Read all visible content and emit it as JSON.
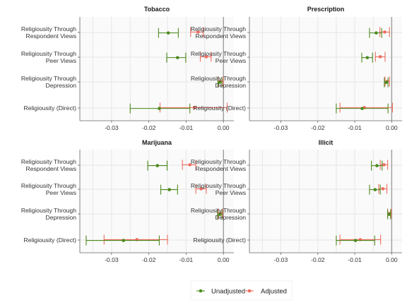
{
  "chart_data": {
    "type": "forest",
    "x_range": [
      -0.0385,
      0.0028
    ],
    "x_ticks": [
      -0.03,
      -0.02,
      -0.01,
      0.0
    ],
    "x_tick_labels": [
      "-0.03",
      "-0.02",
      "-0.01",
      "0.00"
    ],
    "zero_line": 0.0,
    "categories": [
      [
        "Religiousity Through",
        "Respondent Views"
      ],
      [
        "Religiousity Through",
        "Peer Views"
      ],
      [
        "Religiousity Through",
        "Depression"
      ],
      [
        "Religiousity (Direct)"
      ]
    ],
    "series_styles": [
      {
        "name": "Unadjusted",
        "color": "#4d8a1f",
        "offset": 0.15
      },
      {
        "name": "Adjusted",
        "color": "#ef6d5f",
        "offset": -0.15
      }
    ],
    "legend": {
      "position": "bottom",
      "items": [
        {
          "label": "Unadjusted",
          "color": "#4d8a1f"
        },
        {
          "label": "Adjusted",
          "color": "#ef6d5f"
        }
      ]
    },
    "panels": [
      {
        "title": "Tobacco",
        "series": [
          {
            "name": "Unadjusted",
            "points": [
              {
                "est": -0.0148,
                "lo": -0.0174,
                "hi": -0.0121
              },
              {
                "est": -0.0123,
                "lo": -0.0152,
                "hi": -0.0101
              },
              {
                "est": -0.001,
                "lo": -0.0015,
                "hi": -0.0004
              },
              {
                "est": -0.0172,
                "lo": -0.025,
                "hi": -0.009
              }
            ]
          },
          {
            "name": "Adjusted",
            "points": [
              {
                "est": -0.0068,
                "lo": -0.0088,
                "hi": -0.0054
              },
              {
                "est": -0.0046,
                "lo": -0.0062,
                "hi": -0.0033
              },
              {
                "est": -0.0008,
                "lo": -0.0014,
                "hi": -0.0001
              },
              {
                "est": -0.0078,
                "lo": -0.017,
                "hi": 0.001
              }
            ]
          }
        ]
      },
      {
        "title": "Prescription",
        "series": [
          {
            "name": "Unadjusted",
            "points": [
              {
                "est": -0.0042,
                "lo": -0.006,
                "hi": -0.0027
              },
              {
                "est": -0.0066,
                "lo": -0.0081,
                "hi": -0.0052
              },
              {
                "est": -0.0015,
                "lo": -0.002,
                "hi": -0.001
              },
              {
                "est": -0.008,
                "lo": -0.015,
                "hi": -0.001
              }
            ]
          },
          {
            "name": "Adjusted",
            "points": [
              {
                "est": -0.0019,
                "lo": -0.0032,
                "hi": -0.0006
              },
              {
                "est": -0.0031,
                "lo": -0.0044,
                "hi": -0.0018
              },
              {
                "est": -0.0012,
                "lo": -0.0018,
                "hi": -0.0006
              },
              {
                "est": -0.0074,
                "lo": -0.014,
                "hi": 0.0002
              }
            ]
          }
        ]
      },
      {
        "title": "Marijuana",
        "series": [
          {
            "name": "Unadjusted",
            "points": [
              {
                "est": -0.0177,
                "lo": -0.0203,
                "hi": -0.0151
              },
              {
                "est": -0.0145,
                "lo": -0.0168,
                "hi": -0.0123
              },
              {
                "est": -0.001,
                "lo": -0.0016,
                "hi": -0.0004
              },
              {
                "est": -0.0268,
                "lo": -0.0368,
                "hi": -0.0172
              }
            ]
          },
          {
            "name": "Adjusted",
            "points": [
              {
                "est": -0.009,
                "lo": -0.011,
                "hi": -0.0074
              },
              {
                "est": -0.006,
                "lo": -0.0074,
                "hi": -0.0046
              },
              {
                "est": -0.0008,
                "lo": -0.0014,
                "hi": -0.0002
              },
              {
                "est": -0.0232,
                "lo": -0.032,
                "hi": -0.015
              }
            ]
          }
        ]
      },
      {
        "title": "Illicit",
        "series": [
          {
            "name": "Unadjusted",
            "points": [
              {
                "est": -0.004,
                "lo": -0.0055,
                "hi": -0.0026
              },
              {
                "est": -0.0045,
                "lo": -0.006,
                "hi": -0.0031
              },
              {
                "est": -0.0007,
                "lo": -0.0011,
                "hi": -0.0003
              },
              {
                "est": -0.0098,
                "lo": -0.015,
                "hi": -0.0046
              }
            ]
          },
          {
            "name": "Adjusted",
            "points": [
              {
                "est": -0.0021,
                "lo": -0.0031,
                "hi": -0.0011
              },
              {
                "est": -0.0024,
                "lo": -0.0035,
                "hi": -0.0013
              },
              {
                "est": -0.0006,
                "lo": -0.0011,
                "hi": -0.0001
              },
              {
                "est": -0.0085,
                "lo": -0.014,
                "hi": -0.003
              }
            ]
          }
        ]
      }
    ]
  }
}
